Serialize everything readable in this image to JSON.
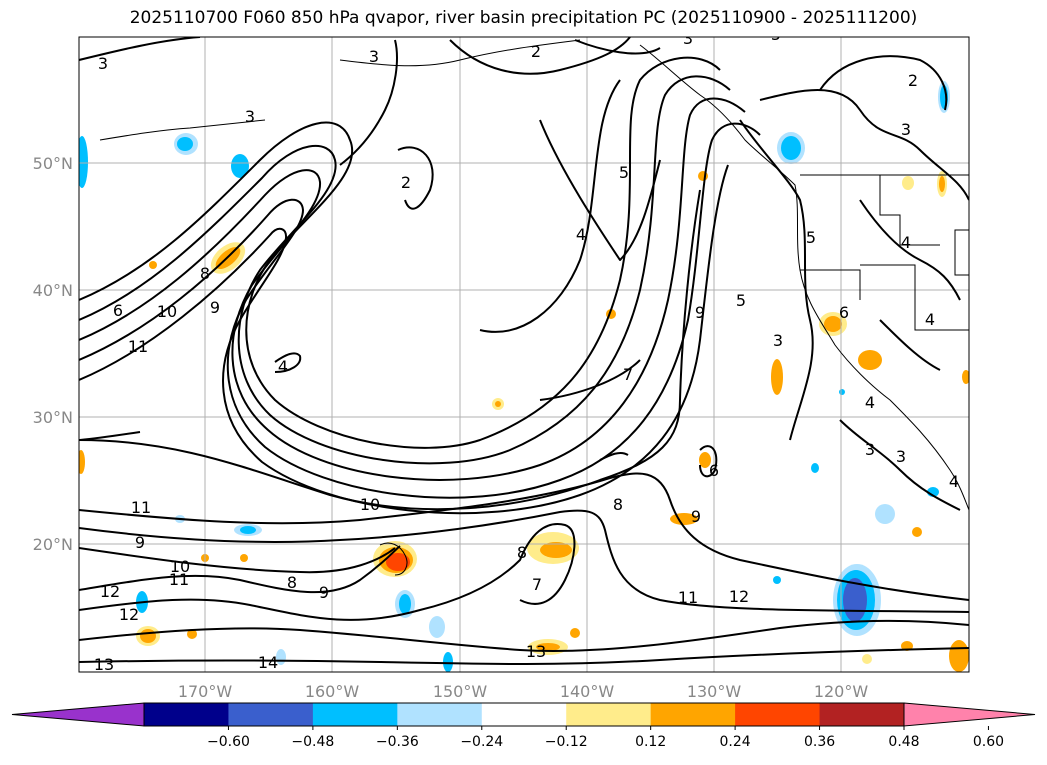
{
  "title": "2025110700 F060 850 hPa qvapor, river basin precipitation PC (2025110900 - 2025111200)",
  "lat_labels": [
    "50°N",
    "40°N",
    "30°N",
    "20°N"
  ],
  "lon_labels": [
    "170°W",
    "160°W",
    "150°W",
    "140°W",
    "130°W",
    "120°W"
  ],
  "colorbar": {
    "colors": [
      "#9932cc",
      "#00008b",
      "#3a5fcd",
      "#00bfff",
      "#b0e2ff",
      "#ffffff",
      "#ffec8b",
      "#ffa500",
      "#ff4500",
      "#b22222",
      "#ff82ab"
    ],
    "tick_labels": [
      "−0.60",
      "−0.48",
      "−0.36",
      "−0.24",
      "−0.12",
      "0.12",
      "0.24",
      "0.36",
      "0.48",
      "0.60"
    ]
  },
  "contour_labels": [
    "3",
    "2",
    "3",
    "5",
    "2",
    "3",
    "3",
    "3",
    "2",
    "5",
    "4",
    "4",
    "8",
    "6",
    "10",
    "9",
    "11",
    "4",
    "9",
    "5",
    "7",
    "3",
    "6",
    "3",
    "4",
    "6",
    "3",
    "11",
    "10",
    "9",
    "8",
    "9",
    "10",
    "11",
    "8",
    "9",
    "8",
    "7",
    "11",
    "12",
    "12",
    "12",
    "13",
    "13",
    "14",
    "4",
    "5",
    "4"
  ]
}
